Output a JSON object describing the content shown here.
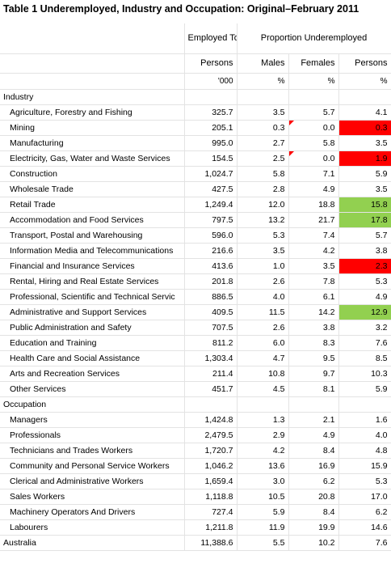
{
  "title": "Table 1 Underemployed, Industry and Occupation: Original–February 2011",
  "headers": {
    "employed_total": "Employed Total",
    "proportion": "Proportion Underemployed",
    "persons1": "Persons",
    "males": "Males",
    "females": "Females",
    "persons2": "Persons",
    "unit_000": "'000",
    "pct1": "%",
    "pct2": "%",
    "pct3": "%"
  },
  "sections": {
    "industry": "Industry",
    "occupation": "Occupation"
  },
  "industry_rows": [
    {
      "label": "Agriculture, Forestry and Fishing",
      "emp": "325.7",
      "m": "3.5",
      "f": "5.7",
      "p": "4.1"
    },
    {
      "label": "Mining",
      "emp": "205.1",
      "m": "0.3",
      "f": "0.0",
      "p": "0.3"
    },
    {
      "label": "Manufacturing",
      "emp": "995.0",
      "m": "2.7",
      "f": "5.8",
      "p": "3.5"
    },
    {
      "label": "Electricity, Gas, Water and Waste Services",
      "emp": "154.5",
      "m": "2.5",
      "f": "0.0",
      "p": "1.9"
    },
    {
      "label": "Construction",
      "emp": "1,024.7",
      "m": "5.8",
      "f": "7.1",
      "p": "5.9"
    },
    {
      "label": "Wholesale Trade",
      "emp": "427.5",
      "m": "2.8",
      "f": "4.9",
      "p": "3.5"
    },
    {
      "label": "Retail Trade",
      "emp": "1,249.4",
      "m": "12.0",
      "f": "18.8",
      "p": "15.8"
    },
    {
      "label": "Accommodation and Food Services",
      "emp": "797.5",
      "m": "13.2",
      "f": "21.7",
      "p": "17.8"
    },
    {
      "label": "Transport, Postal and Warehousing",
      "emp": "596.0",
      "m": "5.3",
      "f": "7.4",
      "p": "5.7"
    },
    {
      "label": "Information Media and Telecommunications",
      "emp": "216.6",
      "m": "3.5",
      "f": "4.2",
      "p": "3.8"
    },
    {
      "label": "Financial and Insurance Services",
      "emp": "413.6",
      "m": "1.0",
      "f": "3.5",
      "p": "2.3"
    },
    {
      "label": "Rental, Hiring and Real Estate Services",
      "emp": "201.8",
      "m": "2.6",
      "f": "7.8",
      "p": "5.3"
    },
    {
      "label": "Professional, Scientific and Technical Servic",
      "emp": "886.5",
      "m": "4.0",
      "f": "6.1",
      "p": "4.9"
    },
    {
      "label": "Administrative and Support Services",
      "emp": "409.5",
      "m": "11.5",
      "f": "14.2",
      "p": "12.9"
    },
    {
      "label": "Public Administration and Safety",
      "emp": "707.5",
      "m": "2.6",
      "f": "3.8",
      "p": "3.2"
    },
    {
      "label": "Education and Training",
      "emp": "811.2",
      "m": "6.0",
      "f": "8.3",
      "p": "7.6"
    },
    {
      "label": "Health Care and Social Assistance",
      "emp": "1,303.4",
      "m": "4.7",
      "f": "9.5",
      "p": "8.5"
    },
    {
      "label": "Arts and Recreation Services",
      "emp": "211.4",
      "m": "10.8",
      "f": "9.7",
      "p": "10.3"
    },
    {
      "label": "Other Services",
      "emp": "451.7",
      "m": "4.5",
      "f": "8.1",
      "p": "5.9"
    }
  ],
  "occupation_rows": [
    {
      "label": "Managers",
      "emp": "1,424.8",
      "m": "1.3",
      "f": "2.1",
      "p": "1.6"
    },
    {
      "label": "Professionals",
      "emp": "2,479.5",
      "m": "2.9",
      "f": "4.9",
      "p": "4.0"
    },
    {
      "label": "Technicians and Trades Workers",
      "emp": "1,720.7",
      "m": "4.2",
      "f": "8.4",
      "p": "4.8"
    },
    {
      "label": "Community and Personal Service Workers",
      "emp": "1,046.2",
      "m": "13.6",
      "f": "16.9",
      "p": "15.9"
    },
    {
      "label": "Clerical and Administrative Workers",
      "emp": "1,659.4",
      "m": "3.0",
      "f": "6.2",
      "p": "5.3"
    },
    {
      "label": "Sales Workers",
      "emp": "1,118.8",
      "m": "10.5",
      "f": "20.8",
      "p": "17.0"
    },
    {
      "label": "Machinery Operators And Drivers",
      "emp": "727.4",
      "m": "5.9",
      "f": "8.4",
      "p": "6.2"
    },
    {
      "label": "Labourers",
      "emp": "1,211.8",
      "m": "11.9",
      "f": "19.9",
      "p": "14.6"
    }
  ],
  "total_row": {
    "label": "Australia",
    "emp": "11,388.6",
    "m": "5.5",
    "f": "10.2",
    "p": "7.6"
  },
  "highlight_colors": {
    "low": "#ff0000",
    "high": "#92d050"
  }
}
